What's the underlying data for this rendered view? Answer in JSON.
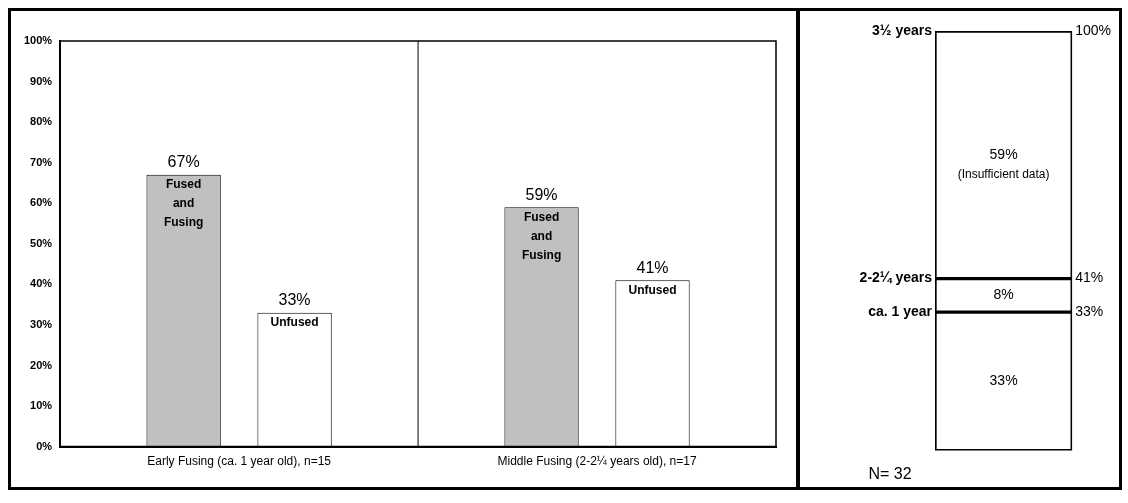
{
  "chart_data": [
    {
      "type": "bar",
      "categories": [
        "Early Fusing (ca. 1 year old), n=15",
        "Middle Fusing (2-2¼ years old), n=17"
      ],
      "series": [
        {
          "name": "Fused and Fusing",
          "color": "#c0c0c0",
          "values": [
            67,
            59
          ],
          "value_labels": [
            "67%",
            "59%"
          ]
        },
        {
          "name": "Unfused",
          "color": "#ffffff",
          "values": [
            33,
            41
          ],
          "value_labels": [
            "33%",
            "41%"
          ]
        }
      ],
      "ylim": [
        0,
        100
      ],
      "yticks": [
        {
          "value": 0,
          "label": "0%"
        },
        {
          "value": 10,
          "label": "10%"
        },
        {
          "value": 20,
          "label": "20%"
        },
        {
          "value": 30,
          "label": "30%"
        },
        {
          "value": 40,
          "label": "40%"
        },
        {
          "value": 50,
          "label": "50%"
        },
        {
          "value": 60,
          "label": "60%"
        },
        {
          "value": 70,
          "label": "70%"
        },
        {
          "value": 80,
          "label": "80%"
        },
        {
          "value": 90,
          "label": "90%"
        },
        {
          "value": 100,
          "label": "100%"
        }
      ],
      "grid": false,
      "legend": false
    },
    {
      "type": "bar",
      "stacked": true,
      "categories": [
        null
      ],
      "series": [
        {
          "color": "#ffffff",
          "values": [
            33
          ],
          "value_labels": [
            "33%"
          ]
        },
        {
          "color": "#ffffff",
          "values": [
            8
          ],
          "value_labels": [
            "8%"
          ]
        },
        {
          "color": "#ffffff",
          "values": [
            59
          ],
          "value_labels": [
            "59%"
          ]
        }
      ],
      "ylim": [
        0,
        100
      ],
      "yticks": [
        {
          "value": 33,
          "label": "33%"
        },
        {
          "value": 41,
          "label": "41%"
        },
        {
          "value": 100,
          "label": "100%"
        }
      ],
      "annotations": [
        "(Insufficient data)",
        "N= 32",
        "ca. 1 year",
        "2-2¼ years",
        "3½ years"
      ],
      "grid": false,
      "legend": false
    }
  ]
}
